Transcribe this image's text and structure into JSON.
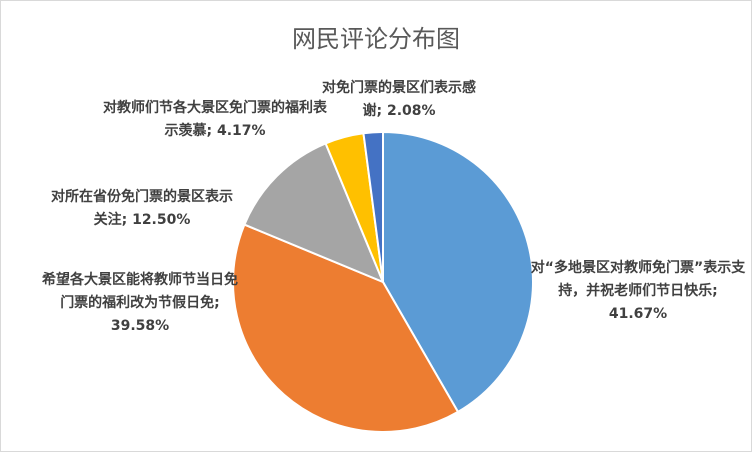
{
  "chart_data": {
    "type": "pie",
    "title": "网民评论分布图",
    "categories": [
      "对“多地景区对教师免门票”表示支持，并祝老师们节日快乐;",
      "希望各大景区能将教师节当日免门票的福利改为节假日免;",
      "对所在省份免门票的景区表示关注;",
      "对教师们节各大景区免门票的福利表示羡慕;",
      "对免门票的景区们表示感谢;"
    ],
    "values": [
      41.67,
      39.58,
      12.5,
      4.17,
      2.08
    ],
    "value_labels": [
      "41.67%",
      "39.58%",
      "12.50%",
      "4.17%",
      "2.08%"
    ],
    "colors": [
      "#5b9bd5",
      "#ed7d31",
      "#a5a5a5",
      "#ffc000",
      "#4472c4"
    ]
  }
}
